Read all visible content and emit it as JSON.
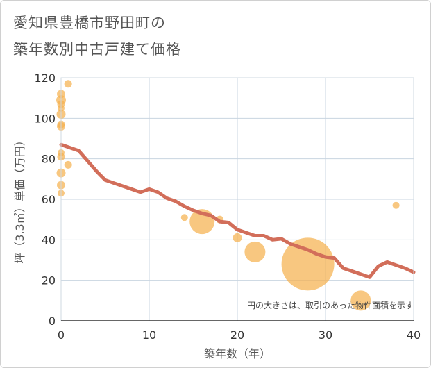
{
  "title_lines": [
    "愛知県豊橋市野田町の",
    "築年数別中古戸建て価格"
  ],
  "chart_data": {
    "type": "scatter+line",
    "xlabel": "築年数（年）",
    "ylabel": "坪（3.3㎡）単価（万円）",
    "xlim": [
      0,
      40
    ],
    "ylim": [
      0,
      120
    ],
    "xticks": [
      0,
      10,
      20,
      30,
      40
    ],
    "yticks": [
      0,
      20,
      40,
      60,
      80,
      100,
      120
    ],
    "note": "円の大きさは、取引のあった物件面積を示す",
    "colors": {
      "bubble": "#f5b24f",
      "line": "#d26e5a",
      "grid": "#c8d4e0",
      "axis": "#333333",
      "tick": "#333333"
    },
    "bubbles": [
      {
        "x": 0,
        "y": 112,
        "size": 1.2
      },
      {
        "x": 0,
        "y": 109,
        "size": 1.4
      },
      {
        "x": 0,
        "y": 107,
        "size": 1.1
      },
      {
        "x": 0,
        "y": 105,
        "size": 1.0
      },
      {
        "x": 0,
        "y": 102,
        "size": 1.3
      },
      {
        "x": 0,
        "y": 97,
        "size": 1.1
      },
      {
        "x": 0,
        "y": 96,
        "size": 1.2
      },
      {
        "x": 0,
        "y": 83,
        "size": 1.0
      },
      {
        "x": 0,
        "y": 81,
        "size": 1.1
      },
      {
        "x": 0,
        "y": 73,
        "size": 1.3
      },
      {
        "x": 0,
        "y": 67,
        "size": 1.2
      },
      {
        "x": 0,
        "y": 63,
        "size": 1.0
      },
      {
        "x": 0.8,
        "y": 117,
        "size": 1.1
      },
      {
        "x": 0.8,
        "y": 77,
        "size": 1.1
      },
      {
        "x": 14,
        "y": 51,
        "size": 1.0
      },
      {
        "x": 16,
        "y": 49,
        "size": 3.6
      },
      {
        "x": 18,
        "y": 50,
        "size": 1.1
      },
      {
        "x": 20,
        "y": 41,
        "size": 1.3
      },
      {
        "x": 22,
        "y": 34,
        "size": 3.0
      },
      {
        "x": 28,
        "y": 28,
        "size": 7.6
      },
      {
        "x": 34,
        "y": 10,
        "size": 2.9
      },
      {
        "x": 38,
        "y": 57,
        "size": 1.0
      }
    ],
    "trend_line": {
      "x": [
        0,
        2,
        3,
        4,
        5,
        6,
        7,
        8,
        9,
        10,
        11,
        12,
        13,
        14,
        15,
        16,
        17,
        18,
        19,
        20,
        21,
        22,
        23,
        24,
        25,
        26,
        27,
        28,
        29,
        30,
        31,
        32,
        33,
        34,
        35,
        36,
        37,
        38,
        39,
        40
      ],
      "y": [
        87,
        84,
        79,
        74,
        69.5,
        68,
        66.5,
        65,
        63.5,
        65,
        63.5,
        60.5,
        59,
        56.5,
        54.5,
        53,
        52,
        49,
        48.5,
        45,
        43.5,
        42,
        42,
        40,
        40.5,
        38,
        36.5,
        35,
        33,
        31.5,
        31,
        26,
        24.5,
        23,
        21.5,
        27,
        29,
        27.5,
        26,
        24
      ]
    }
  }
}
